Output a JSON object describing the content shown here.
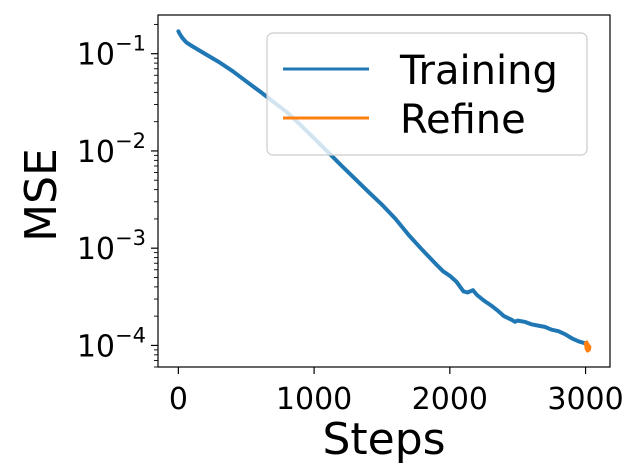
{
  "chart_data": {
    "type": "line",
    "xlabel": "Steps",
    "ylabel": "MSE",
    "xlim": [
      -150,
      3180
    ],
    "ylim": [
      6e-05,
      0.25
    ],
    "yscale": "log",
    "grid": false,
    "legend_position": "top-right",
    "x_ticks": [
      {
        "value": 0,
        "label": "0"
      },
      {
        "value": 1000,
        "label": "1000"
      },
      {
        "value": 2000,
        "label": "2000"
      },
      {
        "value": 3000,
        "label": "3000"
      }
    ],
    "y_ticks": [
      {
        "value": 0.1,
        "base": "10",
        "exp": "−1"
      },
      {
        "value": 0.01,
        "base": "10",
        "exp": "−2"
      },
      {
        "value": 0.001,
        "base": "10",
        "exp": "−3"
      },
      {
        "value": 0.0001,
        "base": "10",
        "exp": "−4"
      }
    ],
    "series": [
      {
        "name": "Training",
        "color": "#1f77b4",
        "x": [
          0,
          10,
          30,
          60,
          100,
          200,
          300,
          400,
          500,
          600,
          700,
          800,
          900,
          1000,
          1100,
          1200,
          1300,
          1400,
          1500,
          1600,
          1700,
          1800,
          1900,
          1950,
          2000,
          2050,
          2100,
          2130,
          2170,
          2200,
          2250,
          2300,
          2350,
          2400,
          2450,
          2480,
          2500,
          2550,
          2600,
          2650,
          2700,
          2750,
          2800,
          2850,
          2900,
          2950,
          3000
        ],
        "y": [
          0.17,
          0.16,
          0.145,
          0.13,
          0.12,
          0.099,
          0.082,
          0.066,
          0.052,
          0.041,
          0.032,
          0.025,
          0.0185,
          0.0135,
          0.0098,
          0.0071,
          0.0052,
          0.0038,
          0.0028,
          0.002,
          0.00135,
          0.00095,
          0.00068,
          0.00058,
          0.00052,
          0.00045,
          0.00036,
          0.00035,
          0.00037,
          0.00033,
          0.00029,
          0.00026,
          0.00023,
          0.0002,
          0.000185,
          0.000175,
          0.00018,
          0.000175,
          0.000165,
          0.00016,
          0.000155,
          0.000145,
          0.00014,
          0.00013,
          0.000118,
          0.00011,
          0.000105
        ]
      },
      {
        "name": "Refine",
        "color": "#ff7f0e",
        "x": [
          3000,
          3003,
          3006,
          3009,
          3012,
          3015,
          3018,
          3021,
          3024,
          3027,
          3030
        ],
        "y": [
          0.000105,
          0.0001,
          9.2e-05,
          0.000108,
          9.5e-05,
          8.8e-05,
          0.000102,
          9.4e-05,
          9.9e-05,
          9e-05,
          9.7e-05
        ]
      }
    ]
  }
}
